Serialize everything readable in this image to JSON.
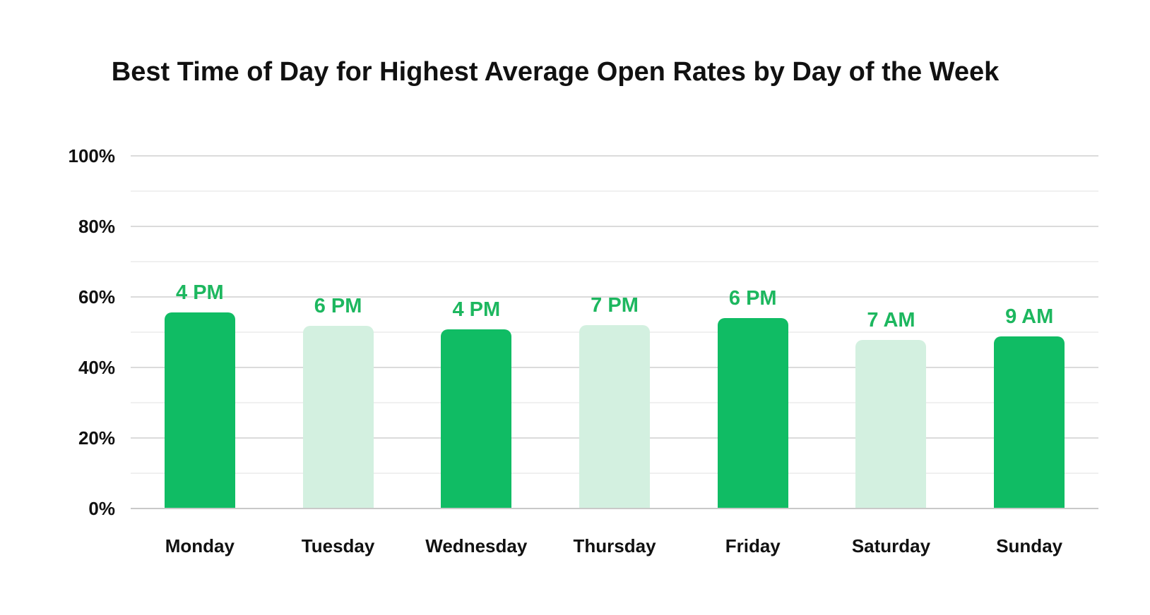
{
  "chart_data": {
    "type": "bar",
    "title": "Best Time of Day for Highest Average Open Rates by Day of the Week",
    "categories": [
      "Monday",
      "Tuesday",
      "Wednesday",
      "Thursday",
      "Friday",
      "Saturday",
      "Sunday"
    ],
    "series": [
      {
        "name": "Average open rate",
        "values": [
          55.6,
          51.7,
          50.8,
          52.0,
          54.0,
          47.8,
          48.7
        ]
      }
    ],
    "point_labels": [
      "4 PM",
      "6 PM",
      "4 PM",
      "7 PM",
      "6 PM",
      "7 AM",
      "9 AM"
    ],
    "bar_styles": [
      "dark",
      "light",
      "dark",
      "light",
      "dark",
      "light",
      "dark"
    ],
    "xlabel": "",
    "ylabel": "",
    "ylim": [
      0,
      100
    ],
    "y_ticks": {
      "values": [
        0,
        20,
        40,
        60,
        80,
        100
      ],
      "labels": [
        "0%",
        "20%",
        "40%",
        "60%",
        "80%",
        "100%"
      ],
      "minor_values": [
        10,
        30,
        50,
        70,
        90
      ]
    },
    "grid": "horizontal",
    "legend": "none"
  },
  "colors": {
    "bar_dark": "#10bc64",
    "bar_light": "#d3f0e0",
    "time_label_green": "#1db75f",
    "text_dark": "#111111",
    "grid_major": "#dbdbdb",
    "grid_minor": "#f0f0f0",
    "baseline": "#c9c9c9",
    "background": "#ffffff"
  }
}
